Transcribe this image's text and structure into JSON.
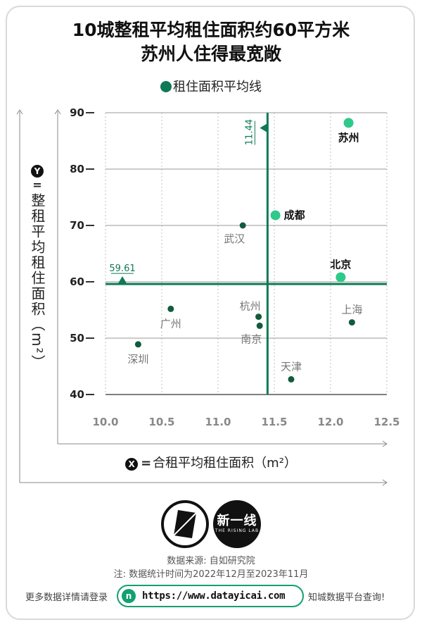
{
  "title_line1": "10城整租平均租住面积约60平方米",
  "title_line2": "苏州人住得最宽敞",
  "legend_label": "租住面积平均线",
  "y_badge": "Y",
  "y_eq": "=",
  "y_axis_label": "整租平均租住面积（m²）",
  "x_badge": "X",
  "x_eq": "=",
  "x_axis_label": "合租平均租住面积（m²）",
  "logo_text": "新一线",
  "logo_subtext": "THE RISING LAB",
  "source_line": "数据来源: 自如研究院",
  "note_line": "注: 数据统计时间为2022年12月至2023年11月",
  "footer_left": "更多数据详情请登录",
  "footer_url": "https://www.datayicai.com",
  "footer_right": "知城数据平台查询!",
  "colors": {
    "avg_line": "#0f7a55",
    "highlight_point": "#2fc98a",
    "point": "#115b3c",
    "grid": "#bfbfbf",
    "accent": "#13a06f"
  },
  "chart_data": {
    "type": "scatter",
    "xlabel": "合租平均租住面积（m²）",
    "ylabel": "整租平均租住面积（m²）",
    "xlim": [
      10.0,
      12.5
    ],
    "ylim": [
      40,
      90
    ],
    "x_ticks": [
      "10.0",
      "10.5",
      "11.0",
      "11.5",
      "12.0",
      "12.5"
    ],
    "y_ticks": [
      "40",
      "50",
      "60",
      "70",
      "80",
      "90"
    ],
    "avg_x": 11.44,
    "avg_x_label": "11.44",
    "avg_y": 59.61,
    "avg_y_label": "59.61",
    "points": [
      {
        "label": "苏州",
        "x": 12.16,
        "y": 88.2,
        "highlight": true,
        "bold": true,
        "label_pos": "below"
      },
      {
        "label": "成都",
        "x": 11.51,
        "y": 71.8,
        "highlight": true,
        "bold": true,
        "label_pos": "right"
      },
      {
        "label": "武汉",
        "x": 11.22,
        "y": 70.0,
        "highlight": false,
        "bold": false,
        "label_pos": "below-left"
      },
      {
        "label": "北京",
        "x": 12.09,
        "y": 60.8,
        "highlight": true,
        "bold": true,
        "label_pos": "above"
      },
      {
        "label": "杭州",
        "x": 11.36,
        "y": 53.8,
        "highlight": false,
        "bold": false,
        "label_pos": "above-left"
      },
      {
        "label": "南京",
        "x": 11.37,
        "y": 52.2,
        "highlight": false,
        "bold": false,
        "label_pos": "below-left"
      },
      {
        "label": "上海",
        "x": 12.19,
        "y": 52.8,
        "highlight": false,
        "bold": false,
        "label_pos": "above"
      },
      {
        "label": "广州",
        "x": 10.58,
        "y": 55.2,
        "highlight": false,
        "bold": false,
        "label_pos": "below"
      },
      {
        "label": "深圳",
        "x": 10.29,
        "y": 48.9,
        "highlight": false,
        "bold": false,
        "label_pos": "below"
      },
      {
        "label": "天津",
        "x": 11.65,
        "y": 42.7,
        "highlight": false,
        "bold": false,
        "label_pos": "above"
      }
    ]
  }
}
